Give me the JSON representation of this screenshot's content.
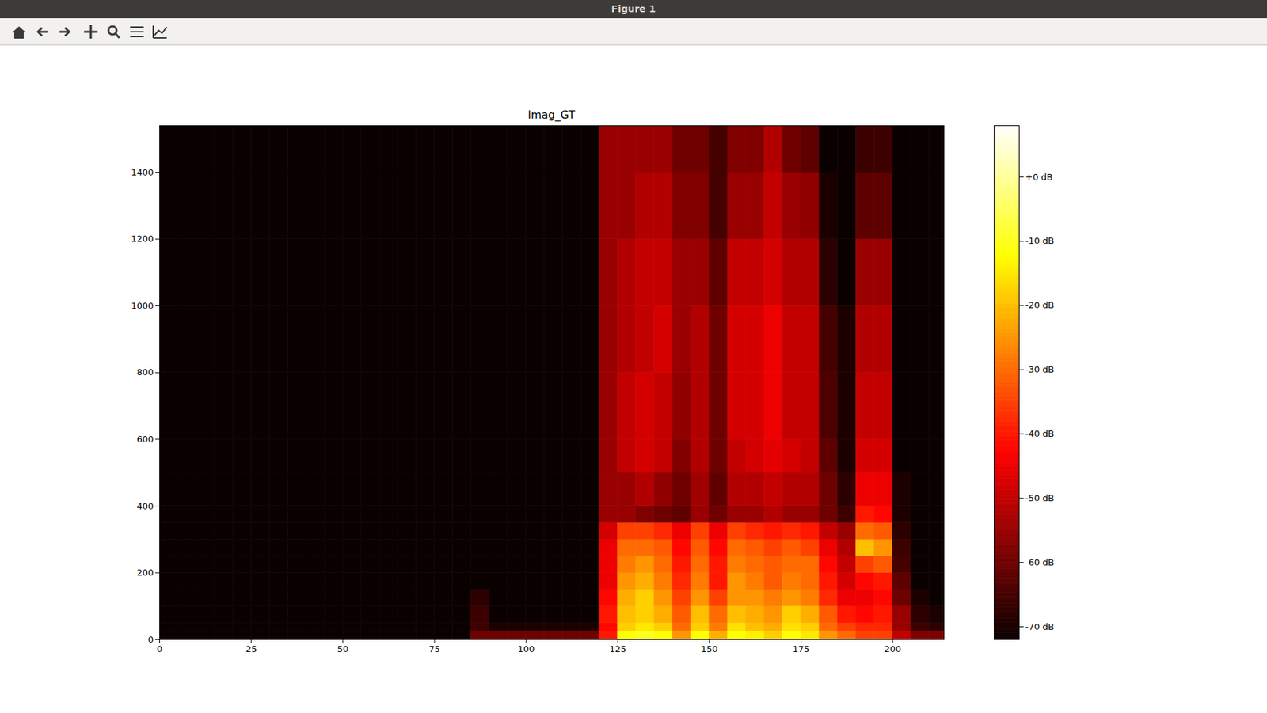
{
  "window": {
    "title": "Figure 1"
  },
  "chart_data": {
    "type": "heatmap",
    "title": "imag_GT",
    "color": "hot",
    "xlim": [
      0,
      214
    ],
    "xticks": [
      0,
      25,
      50,
      75,
      100,
      125,
      150,
      175,
      200
    ],
    "ylim": [
      0,
      1540
    ],
    "yticks": [
      0,
      200,
      400,
      600,
      800,
      1000,
      1200,
      1400
    ],
    "x_bins": [
      0,
      5,
      10,
      15,
      20,
      25,
      30,
      35,
      40,
      45,
      50,
      55,
      60,
      65,
      70,
      75,
      80,
      85,
      90,
      95,
      100,
      105,
      110,
      115,
      120,
      125,
      130,
      135,
      140,
      145,
      150,
      155,
      160,
      165,
      170,
      175,
      180,
      185,
      190,
      195,
      200,
      205,
      210,
      215
    ],
    "y_bins": [
      0,
      25,
      50,
      100,
      150,
      200,
      250,
      300,
      350,
      400,
      500,
      600,
      800,
      1000,
      1200,
      1400,
      1540
    ],
    "cells": [
      [
        -72,
        -72,
        -72,
        -72,
        -72,
        -72,
        -72,
        -72,
        -72,
        -72,
        -72,
        -72,
        -72,
        -72,
        -72,
        -72
      ],
      [
        -72,
        -72,
        -72,
        -72,
        -72,
        -72,
        -72,
        -72,
        -72,
        -72,
        -72,
        -72,
        -72,
        -72,
        -72,
        -72
      ],
      [
        -72,
        -72,
        -72,
        -72,
        -72,
        -72,
        -72,
        -72,
        -72,
        -72,
        -72,
        -72,
        -72,
        -72,
        -72,
        -72
      ],
      [
        -72,
        -72,
        -72,
        -72,
        -72,
        -72,
        -72,
        -72,
        -72,
        -72,
        -72,
        -72,
        -72,
        -72,
        -72,
        -72
      ],
      [
        -72,
        -72,
        -72,
        -72,
        -72,
        -72,
        -72,
        -72,
        -72,
        -72,
        -72,
        -72,
        -72,
        -72,
        -72,
        -72
      ],
      [
        -72,
        -72,
        -72,
        -72,
        -72,
        -72,
        -72,
        -72,
        -72,
        -72,
        -72,
        -72,
        -72,
        -72,
        -72,
        -72
      ],
      [
        -72,
        -72,
        -72,
        -72,
        -72,
        -72,
        -72,
        -72,
        -72,
        -72,
        -72,
        -72,
        -72,
        -72,
        -72,
        -72
      ],
      [
        -72,
        -72,
        -72,
        -72,
        -72,
        -72,
        -72,
        -72,
        -72,
        -72,
        -72,
        -72,
        -72,
        -72,
        -72,
        -72
      ],
      [
        -72,
        -72,
        -72,
        -72,
        -72,
        -72,
        -72,
        -72,
        -72,
        -72,
        -72,
        -72,
        -72,
        -72,
        -72,
        -72
      ],
      [
        -72,
        -72,
        -72,
        -72,
        -72,
        -72,
        -72,
        -72,
        -72,
        -72,
        -72,
        -72,
        -72,
        -72,
        -72,
        -72
      ],
      [
        -72,
        -72,
        -72,
        -72,
        -72,
        -72,
        -72,
        -72,
        -72,
        -72,
        -72,
        -72,
        -72,
        -72,
        -72,
        -72
      ],
      [
        -72,
        -72,
        -72,
        -72,
        -72,
        -72,
        -72,
        -72,
        -72,
        -72,
        -72,
        -72,
        -72,
        -72,
        -72,
        -72
      ],
      [
        -72,
        -72,
        -72,
        -72,
        -72,
        -72,
        -72,
        -72,
        -72,
        -72,
        -72,
        -72,
        -72,
        -72,
        -72,
        -72
      ],
      [
        -72,
        -72,
        -72,
        -72,
        -72,
        -72,
        -72,
        -72,
        -72,
        -72,
        -72,
        -72,
        -72,
        -72,
        -72,
        -72
      ],
      [
        -72,
        -72,
        -72,
        -72,
        -72,
        -72,
        -72,
        -72,
        -72,
        -72,
        -72,
        -72,
        -72,
        -72,
        -72,
        -72
      ],
      [
        -72,
        -72,
        -72,
        -72,
        -72,
        -72,
        -72,
        -72,
        -72,
        -72,
        -72,
        -72,
        -72,
        -72,
        -72,
        -72
      ],
      [
        -72,
        -72,
        -72,
        -72,
        -72,
        -72,
        -72,
        -72,
        -72,
        -72,
        -72,
        -72,
        -72,
        -72,
        -72,
        -72
      ],
      [
        -60,
        -66,
        -66,
        -68,
        -72,
        -72,
        -72,
        -72,
        -72,
        -72,
        -72,
        -72,
        -72,
        -72,
        -72,
        -72
      ],
      [
        -60,
        -70,
        -72,
        -72,
        -72,
        -72,
        -72,
        -72,
        -72,
        -72,
        -72,
        -72,
        -72,
        -72,
        -72,
        -72
      ],
      [
        -60,
        -70,
        -72,
        -72,
        -72,
        -72,
        -72,
        -72,
        -72,
        -72,
        -72,
        -72,
        -72,
        -72,
        -72,
        -72
      ],
      [
        -60,
        -70,
        -72,
        -72,
        -72,
        -72,
        -72,
        -72,
        -72,
        -72,
        -72,
        -72,
        -72,
        -72,
        -72,
        -72
      ],
      [
        -60,
        -70,
        -72,
        -72,
        -72,
        -72,
        -72,
        -72,
        -72,
        -72,
        -72,
        -72,
        -72,
        -72,
        -72,
        -72
      ],
      [
        -60,
        -70,
        -72,
        -72,
        -72,
        -72,
        -72,
        -72,
        -72,
        -72,
        -72,
        -72,
        -72,
        -72,
        -72,
        -72
      ],
      [
        -60,
        -70,
        -72,
        -72,
        -72,
        -72,
        -72,
        -72,
        -72,
        -72,
        -72,
        -72,
        -72,
        -72,
        -72,
        -72
      ],
      [
        -40,
        -42,
        -40,
        -42,
        -45,
        -45,
        -45,
        -48,
        -55,
        -55,
        -55,
        -55,
        -55,
        -55,
        -55,
        -55
      ],
      [
        -12,
        -18,
        -20,
        -22,
        -25,
        -28,
        -30,
        -35,
        -55,
        -55,
        -50,
        -50,
        -52,
        -52,
        -55,
        -55
      ],
      [
        -10,
        -15,
        -18,
        -18,
        -22,
        -25,
        -30,
        -35,
        -58,
        -52,
        -48,
        -48,
        -50,
        -50,
        -52,
        -55
      ],
      [
        -12,
        -18,
        -22,
        -25,
        -28,
        -30,
        -32,
        -38,
        -60,
        -56,
        -50,
        -50,
        -48,
        -50,
        -52,
        -55
      ],
      [
        -25,
        -30,
        -32,
        -35,
        -38,
        -40,
        -42,
        -45,
        -62,
        -60,
        -58,
        -56,
        -55,
        -55,
        -58,
        -60
      ],
      [
        -12,
        -18,
        -20,
        -25,
        -28,
        -30,
        -32,
        -35,
        -55,
        -54,
        -52,
        -52,
        -52,
        -55,
        -58,
        -60
      ],
      [
        -22,
        -28,
        -30,
        -35,
        -40,
        -40,
        -42,
        -45,
        -60,
        -62,
        -60,
        -60,
        -60,
        -62,
        -65,
        -65
      ],
      [
        -12,
        -16,
        -20,
        -25,
        -25,
        -28,
        -30,
        -35,
        -55,
        -52,
        -50,
        -48,
        -48,
        -50,
        -55,
        -58
      ],
      [
        -14,
        -20,
        -22,
        -25,
        -28,
        -30,
        -32,
        -38,
        -55,
        -52,
        -48,
        -48,
        -48,
        -50,
        -55,
        -58
      ],
      [
        -18,
        -22,
        -25,
        -28,
        -32,
        -32,
        -35,
        -40,
        -52,
        -50,
        -46,
        -45,
        -45,
        -48,
        -50,
        -52
      ],
      [
        -12,
        -16,
        -18,
        -25,
        -28,
        -30,
        -32,
        -38,
        -55,
        -52,
        -48,
        -50,
        -50,
        -52,
        -55,
        -60
      ],
      [
        -15,
        -18,
        -22,
        -28,
        -30,
        -30,
        -35,
        -40,
        -55,
        -52,
        -50,
        -50,
        -50,
        -52,
        -56,
        -62
      ],
      [
        -25,
        -30,
        -32,
        -38,
        -40,
        -42,
        -45,
        -50,
        -60,
        -60,
        -62,
        -64,
        -65,
        -68,
        -70,
        -72
      ],
      [
        -30,
        -35,
        -40,
        -45,
        -48,
        -50,
        -52,
        -55,
        -66,
        -68,
        -70,
        -70,
        -70,
        -72,
        -72,
        -72
      ],
      [
        -35,
        -38,
        -42,
        -45,
        -42,
        -35,
        -20,
        -30,
        -40,
        -45,
        -48,
        -50,
        -52,
        -55,
        -62,
        -66
      ],
      [
        -35,
        -38,
        -40,
        -42,
        -40,
        -32,
        -25,
        -32,
        -42,
        -45,
        -48,
        -50,
        -52,
        -55,
        -62,
        -66
      ],
      [
        -50,
        -55,
        -55,
        -60,
        -62,
        -65,
        -66,
        -68,
        -70,
        -70,
        -72,
        -72,
        -72,
        -72,
        -72,
        -72
      ],
      [
        -58,
        -66,
        -68,
        -70,
        -72,
        -72,
        -72,
        -72,
        -72,
        -72,
        -72,
        -72,
        -72,
        -72,
        -72,
        -72
      ],
      [
        -58,
        -68,
        -70,
        -72,
        -72,
        -72,
        -72,
        -72,
        -72,
        -72,
        -72,
        -72,
        -72,
        -72,
        -72,
        -72
      ]
    ],
    "colorbar": {
      "range": [
        -72,
        8
      ],
      "ticks": [
        {
          "value": 0,
          "label": "+0 dB"
        },
        {
          "value": -10,
          "label": "-10 dB"
        },
        {
          "value": -20,
          "label": "-20 dB"
        },
        {
          "value": -30,
          "label": "-30 dB"
        },
        {
          "value": -40,
          "label": "-40 dB"
        },
        {
          "value": -50,
          "label": "-50 dB"
        },
        {
          "value": -60,
          "label": "-60 dB"
        },
        {
          "value": -70,
          "label": "-70 dB"
        }
      ]
    }
  }
}
